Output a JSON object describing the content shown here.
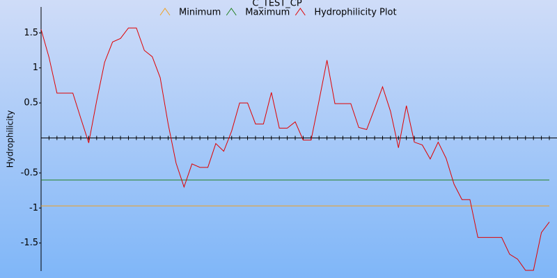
{
  "chart_data": {
    "type": "line",
    "title": "C_TEST_CP",
    "y_label": "Hydrophilicity",
    "x": [
      1,
      2,
      3,
      4,
      5,
      6,
      7,
      8,
      9,
      10,
      11,
      12,
      13,
      14,
      15,
      16,
      17,
      18,
      19,
      20,
      21,
      22,
      23,
      24,
      25,
      26,
      27,
      28,
      29,
      30,
      31,
      32,
      33,
      34,
      35,
      36,
      37,
      38,
      39,
      40,
      41,
      42,
      43,
      44,
      45,
      46,
      47,
      48,
      49,
      50,
      51,
      52,
      53,
      54,
      55,
      56,
      57,
      58,
      59,
      60,
      61,
      62,
      63,
      64,
      65
    ],
    "xlim": [
      1,
      65
    ],
    "ylim": [
      -1.9,
      1.87
    ],
    "yticks": [
      -1.5,
      -1,
      -0.5,
      0.5,
      1,
      1.5
    ],
    "series": [
      {
        "name": "Minimum",
        "color": "#f0a020",
        "values": [
          -0.97,
          -0.97,
          -0.97,
          -0.97,
          -0.97,
          -0.97,
          -0.97,
          -0.97,
          -0.97,
          -0.97,
          -0.97,
          -0.97,
          -0.97,
          -0.97,
          -0.97,
          -0.97,
          -0.97,
          -0.97,
          -0.97,
          -0.97,
          -0.97,
          -0.97,
          -0.97,
          -0.97,
          -0.97,
          -0.97,
          -0.97,
          -0.97,
          -0.97,
          -0.97,
          -0.97,
          -0.97,
          -0.97,
          -0.97,
          -0.97,
          -0.97,
          -0.97,
          -0.97,
          -0.97,
          -0.97,
          -0.97,
          -0.97,
          -0.97,
          -0.97,
          -0.97,
          -0.97,
          -0.97,
          -0.97,
          -0.97,
          -0.97,
          -0.97,
          -0.97,
          -0.97,
          -0.97,
          -0.97,
          -0.97,
          -0.97,
          -0.97,
          -0.97,
          -0.97,
          -0.97,
          -0.97,
          -0.97,
          -0.97,
          -0.97
        ]
      },
      {
        "name": "Maximum",
        "color": "#208020",
        "values": [
          -0.6,
          -0.6,
          -0.6,
          -0.6,
          -0.6,
          -0.6,
          -0.6,
          -0.6,
          -0.6,
          -0.6,
          -0.6,
          -0.6,
          -0.6,
          -0.6,
          -0.6,
          -0.6,
          -0.6,
          -0.6,
          -0.6,
          -0.6,
          -0.6,
          -0.6,
          -0.6,
          -0.6,
          -0.6,
          -0.6,
          -0.6,
          -0.6,
          -0.6,
          -0.6,
          -0.6,
          -0.6,
          -0.6,
          -0.6,
          -0.6,
          -0.6,
          -0.6,
          -0.6,
          -0.6,
          -0.6,
          -0.6,
          -0.6,
          -0.6,
          -0.6,
          -0.6,
          -0.6,
          -0.6,
          -0.6,
          -0.6,
          -0.6,
          -0.6,
          -0.6,
          -0.6,
          -0.6,
          -0.6,
          -0.6,
          -0.6,
          -0.6,
          -0.6,
          -0.6,
          -0.6,
          -0.6,
          -0.6,
          -0.6,
          -0.6
        ]
      },
      {
        "name": "Hydrophilicity Plot",
        "color": "#e00000",
        "values": [
          1.55,
          1.15,
          0.64,
          0.64,
          0.64,
          0.28,
          -0.07,
          0.53,
          1.08,
          1.37,
          1.42,
          1.57,
          1.57,
          1.25,
          1.16,
          0.86,
          0.2,
          -0.36,
          -0.7,
          -0.37,
          -0.42,
          -0.42,
          -0.08,
          -0.19,
          0.1,
          0.5,
          0.5,
          0.2,
          0.2,
          0.65,
          0.14,
          0.14,
          0.23,
          -0.03,
          -0.03,
          0.53,
          1.11,
          0.49,
          0.49,
          0.49,
          0.15,
          0.12,
          0.42,
          0.73,
          0.38,
          -0.14,
          0.46,
          -0.06,
          -0.1,
          -0.3,
          -0.06,
          -0.29,
          -0.66,
          -0.88,
          -0.88,
          -1.42,
          -1.42,
          -1.42,
          -1.42,
          -1.66,
          -1.73,
          -1.89,
          -1.89,
          -1.35,
          -1.2
        ]
      }
    ]
  }
}
